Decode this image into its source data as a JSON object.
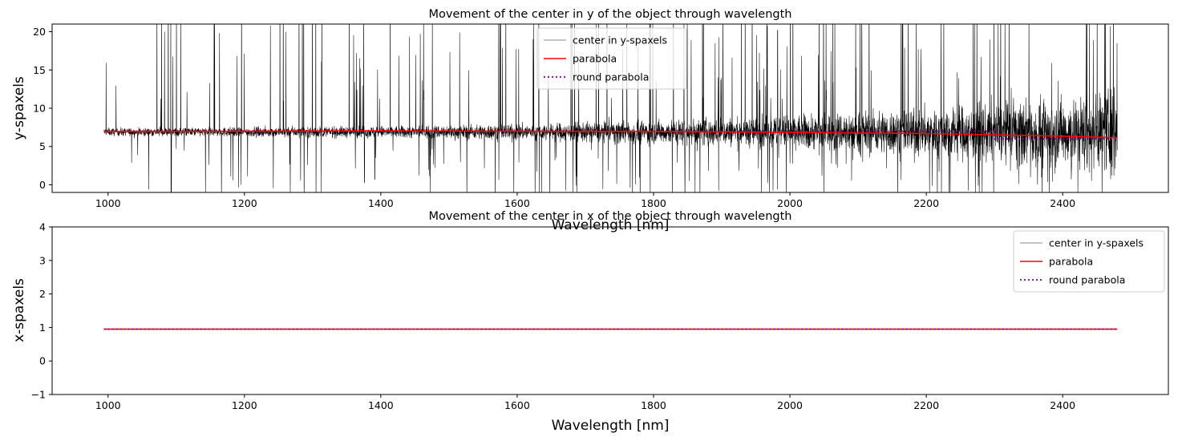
{
  "chart_data": [
    {
      "type": "line",
      "title": "Movement of the center in y of the object through wavelength",
      "xlabel": "Wavelength [nm]",
      "ylabel": "y-spaxels",
      "xlim": [
        918,
        2555
      ],
      "ylim": [
        -1,
        21
      ],
      "xticks": [
        1000,
        1200,
        1400,
        1600,
        1800,
        2000,
        2200,
        2400
      ],
      "yticks": [
        0,
        5,
        10,
        15,
        20
      ],
      "legend_position": "top-center",
      "series": [
        {
          "name": "center in y-spaxels",
          "color": "#000000",
          "legend_color": "#b0b0b0",
          "style": "solid",
          "x_start": 994,
          "x_end": 2480,
          "baseline": 6.9,
          "note_shape": "dense noisy signal around baseline with many spikes reaching axis limits; spread widens toward long wavelengths"
        },
        {
          "name": "parabola",
          "color": "#ff0000",
          "style": "solid",
          "x": [
            994,
            1200,
            1400,
            1600,
            1800,
            2000,
            2200,
            2400,
            2480
          ],
          "y": [
            6.95,
            7.0,
            7.05,
            7.0,
            6.95,
            6.85,
            6.7,
            6.35,
            6.15
          ]
        },
        {
          "name": "round parabola",
          "color": "#800080",
          "style": "dotted",
          "x": [
            994,
            1200,
            1400,
            1600,
            1800,
            2000,
            2200,
            2300,
            2300,
            2480
          ],
          "y": [
            7,
            7,
            7,
            7,
            7,
            7,
            7,
            7,
            6,
            6
          ]
        }
      ]
    },
    {
      "type": "line",
      "title": "Movement of the center in x of the object through wavelength",
      "xlabel": "Wavelength [nm]",
      "ylabel": "x-spaxels",
      "xlim": [
        918,
        2555
      ],
      "ylim": [
        -1,
        4
      ],
      "xticks": [
        1000,
        1200,
        1400,
        1600,
        1800,
        2000,
        2200,
        2400
      ],
      "yticks": [
        -1,
        0,
        1,
        2,
        3,
        4
      ],
      "legend_position": "top-right",
      "series": [
        {
          "name": "center in y-spaxels",
          "color": "#b0b0b0",
          "style": "solid",
          "x": [
            994,
            2480
          ],
          "y": [
            0.95,
            0.95
          ]
        },
        {
          "name": "parabola",
          "color": "#ff0000",
          "style": "solid",
          "x": [
            994,
            2480
          ],
          "y": [
            0.95,
            0.95
          ]
        },
        {
          "name": "round parabola",
          "color": "#800080",
          "style": "dotted",
          "x": [
            994,
            2480
          ],
          "y": [
            0.95,
            0.95
          ]
        }
      ]
    }
  ]
}
